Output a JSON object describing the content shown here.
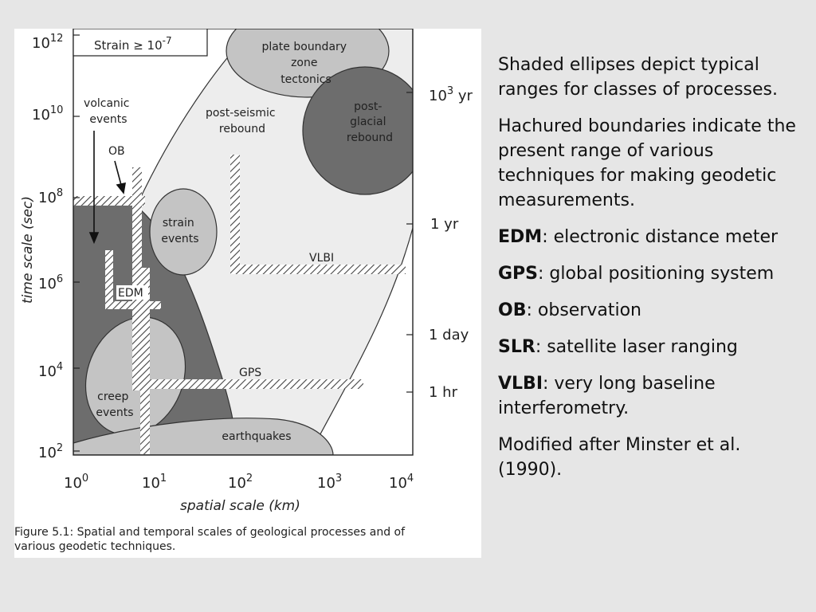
{
  "figure": {
    "y_ticks": {
      "t12": "10",
      "t10": "10",
      "t8": "10",
      "t6": "10",
      "t4": "10",
      "t2": "10",
      "e12": "12",
      "e10": "10",
      "e8": "8",
      "e6": "6",
      "e4": "4",
      "e2": "2"
    },
    "x_ticks": {
      "b": "10",
      "e0": "0",
      "e1": "1",
      "e2": "2",
      "e3": "3",
      "e4": "4"
    },
    "y_axis_label": "time  scale  (sec)",
    "x_axis_label": "spatial  scale  (km)",
    "strain_label": "Strain ≥ 10",
    "strain_exp": "-7",
    "right_ticks": {
      "t1000yr_base": "10",
      "t1000yr_exp": "3",
      "t1000yr_unit": " yr",
      "t1yr": "1 yr",
      "t1day": "1 day",
      "t1hr": "1 hr"
    },
    "regions": {
      "plate": [
        "plate boundary",
        "zone",
        "tectonics"
      ],
      "postglacial": [
        "post-",
        "glacial",
        "rebound"
      ],
      "postseismic": [
        "post-seismic",
        "rebound"
      ],
      "volcanic": [
        "volcanic",
        "events"
      ],
      "strain": [
        "strain",
        "events"
      ],
      "creep": [
        "creep",
        "events"
      ],
      "earthquakes": "earthquakes"
    },
    "techniques": {
      "ob": "OB",
      "edm": "EDM",
      "vlbi": "VLBI",
      "gps": "GPS"
    },
    "caption_line1": "Figure 5.1: Spatial and temporal scales of geological processes and of",
    "caption_line2": "various geodetic techniques."
  },
  "text": {
    "p1": "Shaded ellipses depict typical ranges for classes of processes.",
    "p2": "Hachured boundaries indicate the present range of various techniques for making geodetic measurements.",
    "edm_term": "EDM",
    "edm_def": ": electronic distance meter",
    "gps_term": "GPS",
    "gps_def": ": global positioning system",
    "ob_term": "OB",
    "ob_def": ": observation",
    "slr_term": "SLR",
    "slr_def": ": satellite laser ranging",
    "vlbi_term": "VLBI",
    "vlbi_def": ": very long baseline interferometry.",
    "p_mod": "Modified after Minster et al. (1990)."
  }
}
